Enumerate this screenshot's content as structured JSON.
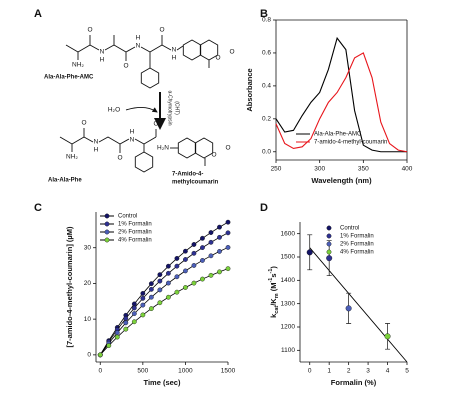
{
  "panel_labels": [
    "A",
    "B",
    "C",
    "D"
  ],
  "diagram": {
    "substrate": "Ala-Ala-Phe-AMC",
    "water": "H₂O",
    "enzyme": "α-Chymotrypsin",
    "enzyme_abbr": "(CHT)",
    "product_peptide": "Ala-Ala-Phe",
    "product_amc": [
      "7-Amido-4-",
      "methylcoumarin"
    ],
    "substrate_atoms": [
      "NH₂",
      "O",
      "N",
      "H",
      "O",
      "N",
      "H",
      "O",
      "N",
      "H",
      "O",
      "O"
    ],
    "peptide_atoms": [
      "NH₂",
      "O",
      "N",
      "H",
      "O",
      "N",
      "H",
      "O"
    ],
    "amc_atoms": [
      "H₂N",
      "O",
      "O"
    ]
  },
  "chart_data": [
    {
      "type": "line",
      "frame": "box",
      "xlabel": "Wavelength (nm)",
      "ylabel": "Absorbance",
      "x": [
        250,
        260,
        270,
        280,
        290,
        300,
        310,
        320,
        330,
        340,
        350,
        360,
        370,
        380,
        390,
        400
      ],
      "series": [
        {
          "name": "Ala-Ala-Phe-AMC",
          "color": "#000000",
          "values": [
            0.2,
            0.12,
            0.13,
            0.22,
            0.3,
            0.36,
            0.5,
            0.69,
            0.62,
            0.25,
            0.04,
            0.01,
            0,
            0,
            0,
            0
          ]
        },
        {
          "name": "7-amido-4-methyl-coumarin",
          "color": "#e8151b",
          "values": [
            0.17,
            0.05,
            0.02,
            0.03,
            0.08,
            0.2,
            0.3,
            0.36,
            0.45,
            0.57,
            0.6,
            0.45,
            0.18,
            0.05,
            0.01,
            0
          ]
        }
      ],
      "xlim": [
        250,
        400
      ],
      "xticks": [
        250,
        300,
        350,
        400
      ],
      "ylim": [
        -0.05,
        0.8
      ],
      "yticks": [
        {
          "value": 0,
          "label": "0.0"
        },
        0.2,
        0.4,
        0.6,
        0.8
      ],
      "legend": "lower center"
    },
    {
      "type": "line",
      "frame": "axes",
      "markers": true,
      "line_color": "#000000",
      "xlabel": "Time (sec)",
      "ylabel": "[7-amido-4-methyl-coumarin] (µM)",
      "x": [
        0,
        100,
        200,
        300,
        400,
        500,
        600,
        700,
        800,
        900,
        1000,
        1100,
        1200,
        1300,
        1400,
        1500
      ],
      "series": [
        {
          "name": "Control",
          "color": "#141466",
          "values": [
            0,
            3.98,
            7.66,
            11.08,
            14.26,
            17.2,
            19.93,
            22.46,
            24.82,
            27.0,
            29.02,
            30.9,
            32.64,
            34.25,
            35.76,
            37.14
          ]
        },
        {
          "name": "1% Formalin",
          "color": "#2e3192",
          "values": [
            0,
            3.66,
            7.05,
            10.19,
            13.12,
            15.82,
            18.34,
            20.66,
            22.83,
            24.84,
            26.7,
            28.43,
            30.03,
            31.51,
            32.9,
            34.17
          ]
        },
        {
          "name": "2% Formalin",
          "color": "#4c5fb8",
          "values": [
            0,
            3.22,
            6.2,
            8.97,
            11.55,
            13.93,
            16.14,
            18.19,
            20.1,
            21.87,
            23.51,
            25.03,
            26.44,
            27.74,
            28.97,
            30.08
          ]
        },
        {
          "name": "4% Formalin",
          "color": "#7bd13b",
          "values": [
            0,
            2.59,
            4.98,
            7.2,
            9.27,
            11.18,
            12.95,
            14.6,
            16.13,
            17.55,
            18.86,
            20.09,
            21.22,
            22.26,
            23.24,
            24.14
          ]
        }
      ],
      "xlim": [
        -50,
        1500
      ],
      "xticks": [
        0,
        500,
        1000,
        1500
      ],
      "ylim": [
        -2,
        40
      ],
      "yticks": [
        0,
        10,
        20,
        30
      ],
      "legend": "upper left"
    },
    {
      "type": "scatter",
      "frame": "axes",
      "xlabel": "Formalin (%)",
      "ylabel": {
        "parts": [
          {
            "text": "k"
          },
          {
            "text": "cat",
            "shift": "sub"
          },
          {
            "text": "/K"
          },
          {
            "text": "m",
            "shift": "sub"
          },
          {
            "text": " (M"
          },
          {
            "text": "-1",
            "shift": "sup"
          },
          {
            "text": "s"
          },
          {
            "text": "-1",
            "shift": "sup"
          },
          {
            "text": ")"
          }
        ]
      },
      "series": [
        {
          "name": "Control",
          "color": "#141466",
          "x": [
            0
          ],
          "values": [
            1520
          ],
          "errors": [
            75
          ]
        },
        {
          "name": "1% Formalin",
          "color": "#2e3192",
          "x": [
            1
          ],
          "values": [
            1495
          ],
          "errors": [
            75
          ]
        },
        {
          "name": "2% Formalin",
          "color": "#4c5fb8",
          "x": [
            2
          ],
          "values": [
            1280
          ],
          "errors": [
            65
          ]
        },
        {
          "name": "4% Formalin",
          "color": "#7bd13b",
          "x": [
            4
          ],
          "values": [
            1160
          ],
          "errors": [
            55
          ]
        }
      ],
      "fit": {
        "color": "#000000",
        "x": [
          0,
          5
        ],
        "values": [
          1540,
          1050
        ]
      },
      "xlim": [
        -0.5,
        5
      ],
      "xticks": [
        0,
        1,
        2,
        3,
        4,
        5
      ],
      "ylim": [
        1050,
        1650
      ],
      "yticks": [
        1100,
        1200,
        1300,
        1400,
        1500,
        1600
      ],
      "legend": "upper center"
    }
  ]
}
